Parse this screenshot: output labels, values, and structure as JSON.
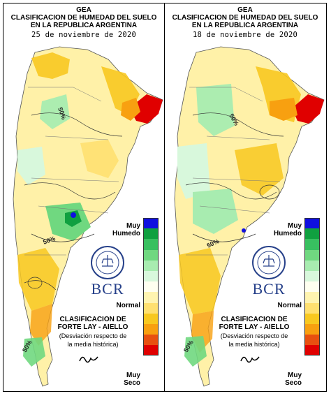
{
  "panels": [
    {
      "title_line1": "GEA",
      "title_line2": "CLASIFICACION DE HUMEDAD DEL SUELO",
      "title_line3": "EN LA REPUBLICA ARGENTINA",
      "date": "25 de noviembre de 2020",
      "contour_label": "50%"
    },
    {
      "title_line1": "GEA",
      "title_line2": "CLASIFICACION DE HUMEDAD DEL SUELO",
      "title_line3": "EN LA REPUBLICA ARGENTINA",
      "date": "18 de noviembre de 2020",
      "contour_label": "50%"
    }
  ],
  "legend": {
    "top_label_line1": "Muy",
    "top_label_line2": "Humedo",
    "middle_label": "Normal",
    "bottom_label_line1": "Muy",
    "bottom_label_line2": "Seco",
    "colors": [
      "#1010e0",
      "#10a040",
      "#38c060",
      "#70d880",
      "#a8ecb0",
      "#d8f8dc",
      "#fffff0",
      "#fff4b0",
      "#ffe070",
      "#f8c820",
      "#f8a010",
      "#e85010",
      "#e00000"
    ]
  },
  "brand": {
    "name": "BCR",
    "classification_line1": "CLASIFICACION DE",
    "classification_line2": "FORTE LAY - AIELLO",
    "note_line1": "(Desviación respecto de",
    "note_line2": "la media histórica)"
  }
}
